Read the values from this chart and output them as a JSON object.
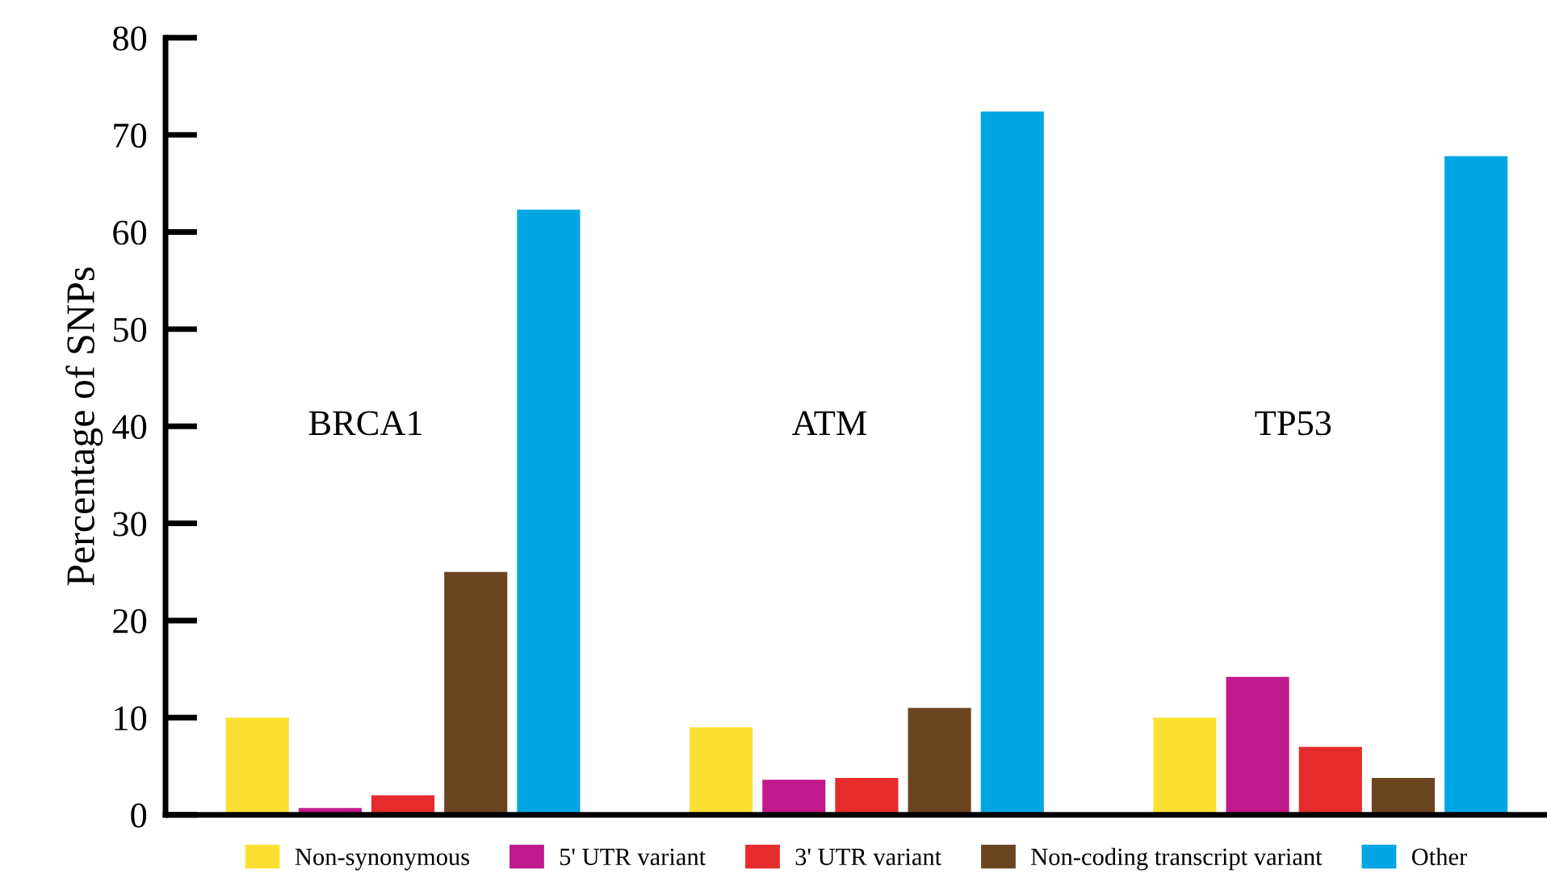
{
  "chart_data": {
    "type": "bar",
    "ylabel": "Percentage of SNPs",
    "categories": [
      "BRCA1",
      "ATM",
      "TP53"
    ],
    "series": [
      {
        "name": "Non-synonymous",
        "color": "#fbe033",
        "values": [
          10,
          9,
          10
        ]
      },
      {
        "name": "5' UTR variant",
        "color": "#c0198c",
        "values": [
          0.7,
          3.6,
          14.2
        ]
      },
      {
        "name": "3' UTR variant",
        "color": "#e52b2b",
        "values": [
          2,
          3.8,
          7
        ]
      },
      {
        "name": "Non-coding transcript variant",
        "color": "#6b4420",
        "values": [
          25,
          11,
          3.8
        ]
      },
      {
        "name": "Other",
        "color": "#00a6e4",
        "values": [
          62.3,
          72.4,
          67.8
        ]
      }
    ],
    "ylim": [
      0,
      80
    ],
    "yticks": [
      0,
      10,
      20,
      30,
      40,
      50,
      60,
      70,
      80
    ],
    "grid": false,
    "legend": "bottom",
    "tick_labels": "y"
  }
}
